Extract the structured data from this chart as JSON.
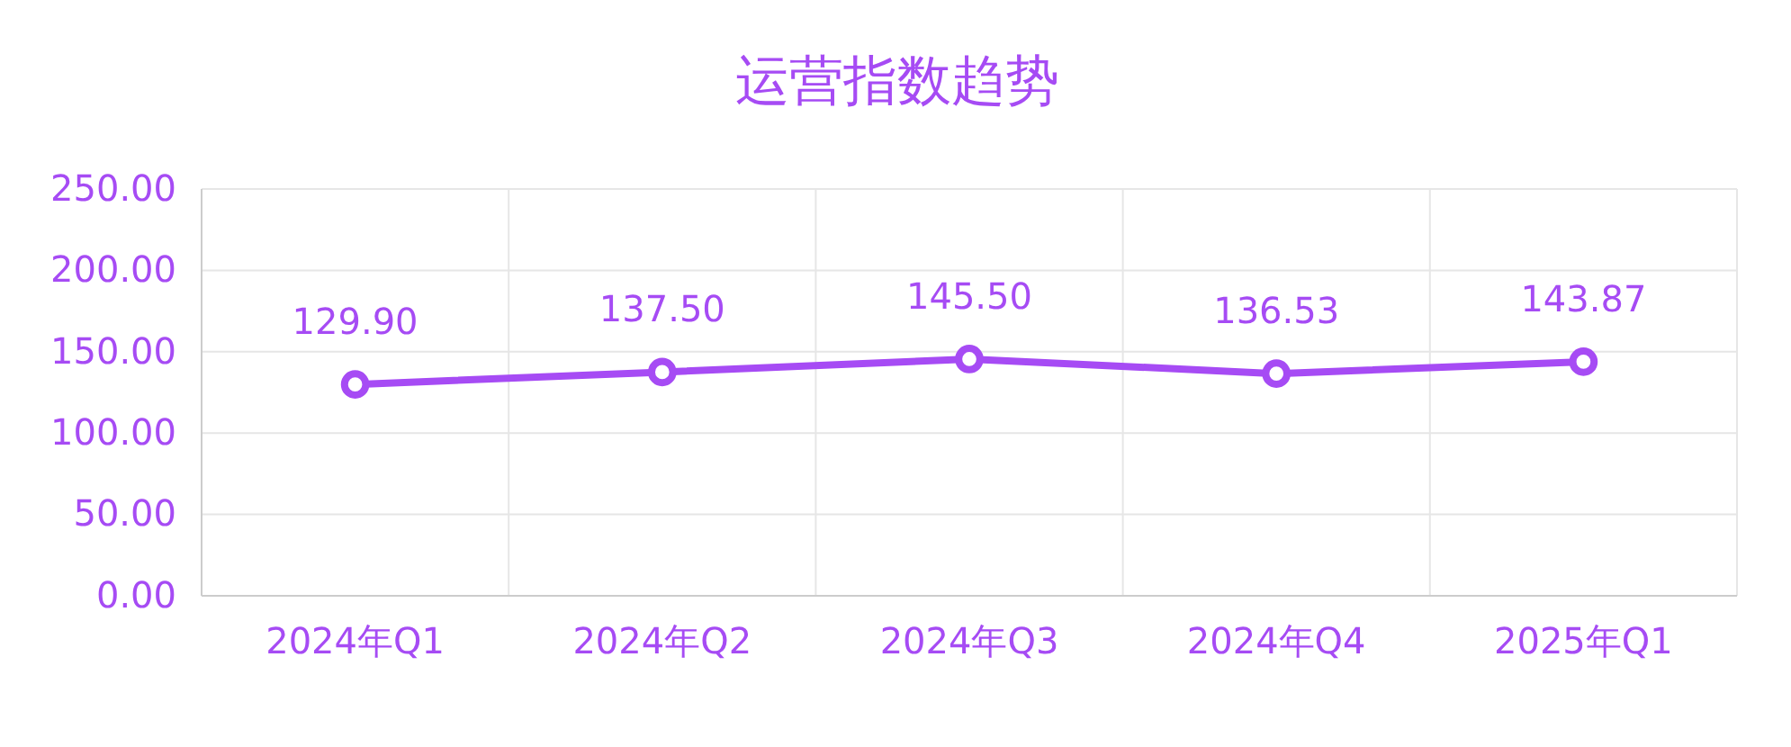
{
  "chart_data": {
    "type": "line",
    "title": "运营指数趋势",
    "categories": [
      "2024年Q1",
      "2024年Q2",
      "2024年Q3",
      "2024年Q4",
      "2025年Q1"
    ],
    "series": [
      {
        "color": "#a64bf4",
        "values": [
          129.9,
          137.5,
          145.5,
          136.53,
          143.87
        ],
        "value_labels": [
          "129.90",
          "137.50",
          "145.50",
          "136.53",
          "143.87"
        ]
      }
    ],
    "ylim": [
      0,
      250
    ],
    "yticks": [
      {
        "value": 0,
        "label": "0.00"
      },
      {
        "value": 50,
        "label": "50.00"
      },
      {
        "value": 100,
        "label": "100.00"
      },
      {
        "value": 150,
        "label": "150.00"
      },
      {
        "value": 200,
        "label": "200.00"
      },
      {
        "value": 250,
        "label": "250.00"
      }
    ],
    "grid": true,
    "marker": "circle",
    "line_style": "solid"
  }
}
